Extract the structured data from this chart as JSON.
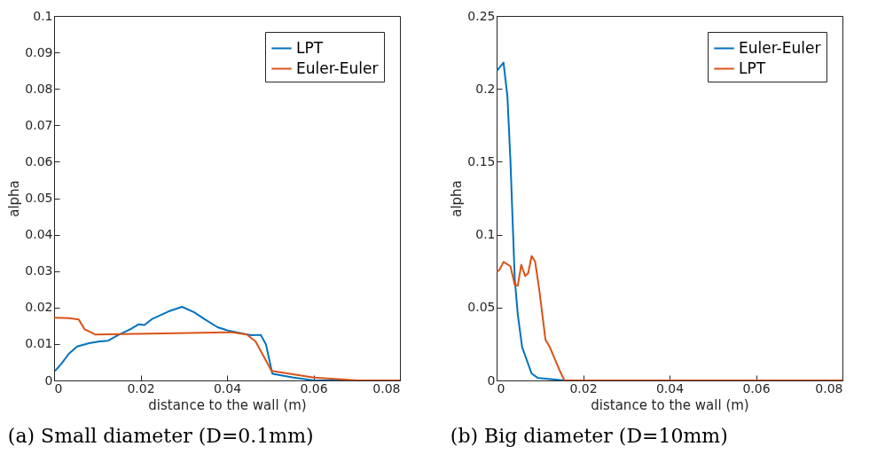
{
  "chart_data": [
    {
      "type": "line",
      "title": "(a) Small diameter (D=0.1mm)",
      "xlabel": "distance to the wall (m)",
      "ylabel": "alpha",
      "xlim": [
        0,
        0.08
      ],
      "xticks": [
        0,
        0.02,
        0.04,
        0.06,
        0.08
      ],
      "ylim": [
        0,
        0.1
      ],
      "yticks": [
        0,
        0.01,
        0.02,
        0.03,
        0.04,
        0.05,
        0.06,
        0.07,
        0.08,
        0.09,
        0.1
      ],
      "grid": false,
      "legend": "top right",
      "marker": "none",
      "line_style": "solid",
      "series": [
        {
          "name": "LPT",
          "color": "#0072bd",
          "x": [
            0.0002,
            0.0017,
            0.0034,
            0.0053,
            0.0081,
            0.0105,
            0.0125,
            0.0149,
            0.0176,
            0.0196,
            0.0209,
            0.0226,
            0.0264,
            0.0296,
            0.0324,
            0.0348,
            0.0378,
            0.0405,
            0.0439,
            0.0456,
            0.0478,
            0.049,
            0.0505,
            0.0554,
            0.0601,
            0.08
          ],
          "values": [
            0.0026,
            0.0046,
            0.0073,
            0.0093,
            0.0102,
            0.0107,
            0.0109,
            0.0125,
            0.014,
            0.0154,
            0.0152,
            0.0168,
            0.0189,
            0.0202,
            0.0187,
            0.0168,
            0.0146,
            0.0136,
            0.0128,
            0.0124,
            0.0125,
            0.0099,
            0.0018,
            0.0008,
            0,
            0
          ]
        },
        {
          "name": "Euler-Euler",
          "color": "#d95319",
          "x": [
            0,
            0.0034,
            0.0057,
            0.0071,
            0.0095,
            0.025,
            0.0412,
            0.0446,
            0.0466,
            0.0503,
            0.0601,
            0.0703,
            0.08
          ],
          "values": [
            0.0172,
            0.0171,
            0.0167,
            0.014,
            0.0126,
            0.0129,
            0.0132,
            0.0126,
            0.0107,
            0.0026,
            0.0008,
            0,
            0
          ]
        }
      ]
    },
    {
      "type": "line",
      "title": "(b) Big diameter (D=10mm)",
      "xlabel": "distance to the wall (m)",
      "ylabel": "alpha",
      "xlim": [
        0,
        0.08
      ],
      "xticks": [
        0,
        0.02,
        0.04,
        0.06,
        0.08
      ],
      "ylim": [
        0,
        0.25
      ],
      "yticks": [
        0,
        0.05,
        0.1,
        0.15,
        0.2,
        0.25
      ],
      "grid": false,
      "legend": "top right",
      "marker": "none",
      "line_style": "solid",
      "series": [
        {
          "name": "Euler-Euler",
          "color": "#0072bd",
          "x": [
            0.0001,
            0.0016,
            0.0025,
            0.0032,
            0.0042,
            0.0049,
            0.0059,
            0.0081,
            0.0096,
            0.0157,
            0.08
          ],
          "values": [
            0.2125,
            0.218,
            0.195,
            0.1507,
            0.0695,
            0.0452,
            0.0229,
            0.0047,
            0.0016,
            0,
            0
          ]
        },
        {
          "name": "LPT",
          "color": "#d95319",
          "x": [
            0.0001,
            0.0007,
            0.0016,
            0.0032,
            0.0042,
            0.0049,
            0.0057,
            0.0066,
            0.0073,
            0.0081,
            0.0089,
            0.0099,
            0.0113,
            0.0123,
            0.0146,
            0.0157,
            0.08
          ],
          "values": [
            0.0746,
            0.076,
            0.0813,
            0.0783,
            0.0655,
            0.065,
            0.0793,
            0.0716,
            0.0736,
            0.0853,
            0.0817,
            0.0614,
            0.028,
            0.0229,
            0.0067,
            0,
            0
          ]
        }
      ]
    }
  ]
}
